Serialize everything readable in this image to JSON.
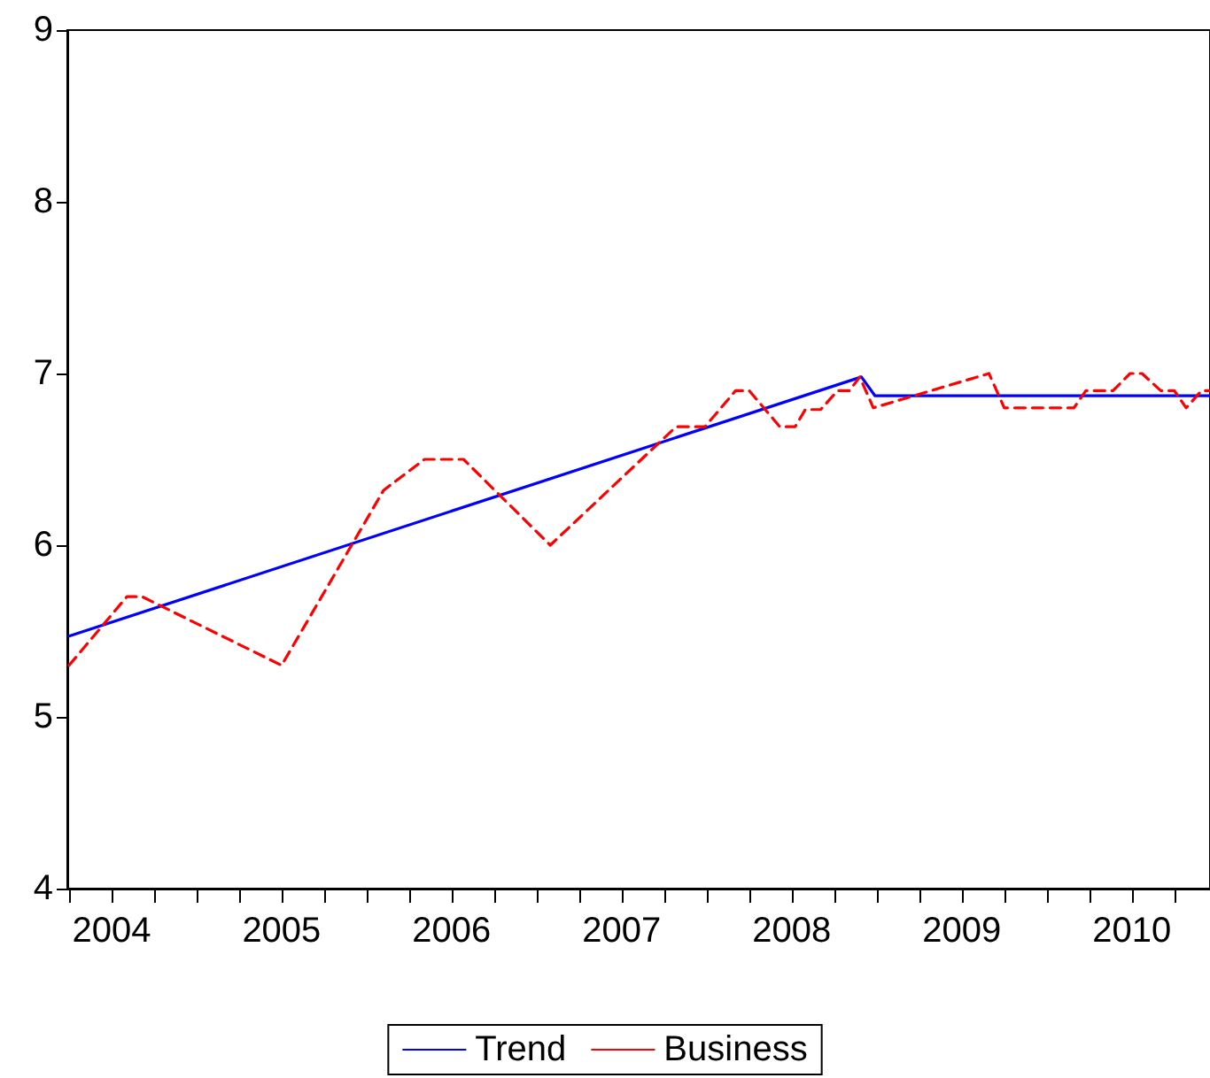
{
  "chart_data": {
    "type": "line",
    "xlim": [
      2004.24,
      2010.96
    ],
    "xticks": [
      {
        "value": 2004.25,
        "label": null
      },
      {
        "value": 2004.5,
        "label": "2004"
      },
      {
        "value": 2004.75,
        "label": null
      },
      {
        "value": 2005,
        "label": null
      },
      {
        "value": 2005.25,
        "label": null
      },
      {
        "value": 2005.5,
        "label": "2005"
      },
      {
        "value": 2005.75,
        "label": null
      },
      {
        "value": 2006,
        "label": null
      },
      {
        "value": 2006.25,
        "label": null
      },
      {
        "value": 2006.5,
        "label": "2006"
      },
      {
        "value": 2006.75,
        "label": null
      },
      {
        "value": 2007,
        "label": null
      },
      {
        "value": 2007.25,
        "label": null
      },
      {
        "value": 2007.5,
        "label": "2007"
      },
      {
        "value": 2007.75,
        "label": null
      },
      {
        "value": 2008,
        "label": null
      },
      {
        "value": 2008.25,
        "label": null
      },
      {
        "value": 2008.5,
        "label": "2008"
      },
      {
        "value": 2008.75,
        "label": null
      },
      {
        "value": 2009,
        "label": null
      },
      {
        "value": 2009.25,
        "label": null
      },
      {
        "value": 2009.5,
        "label": "2009"
      },
      {
        "value": 2009.75,
        "label": null
      },
      {
        "value": 2010,
        "label": null
      },
      {
        "value": 2010.25,
        "label": null
      },
      {
        "value": 2010.5,
        "label": "2010"
      },
      {
        "value": 2010.75,
        "label": null
      }
    ],
    "ylim": [
      4,
      9
    ],
    "yticks": [
      4,
      5,
      6,
      7,
      8,
      9
    ],
    "grid": false,
    "legend": "bottom",
    "marker": "none",
    "series": [
      {
        "name": "Trend",
        "color": "#0000ff",
        "line_style": "solid",
        "x": [
          2004.25,
          2008.91,
          2008.99,
          2010.96
        ],
        "values": [
          5.47,
          6.98,
          6.87,
          6.87
        ]
      },
      {
        "name": "Business",
        "color": "#ff0000",
        "line_style": "dashed",
        "x": [
          2004.25,
          2004.59,
          2004.68,
          2005.5,
          2006.1,
          2006.34,
          2006.57,
          2007.08,
          2007.82,
          2007.99,
          2008.17,
          2008.25,
          2008.43,
          2008.52,
          2008.58,
          2008.67,
          2008.77,
          2008.84,
          2008.9,
          2008.98,
          2009.66,
          2009.75,
          2010.16,
          2010.23,
          2010.39,
          2010.49,
          2010.56,
          2010.67,
          2010.75,
          2010.82,
          2010.91,
          2010.96
        ],
        "values": [
          5.3,
          5.7,
          5.7,
          5.3,
          6.32,
          6.5,
          6.5,
          6.0,
          6.69,
          6.69,
          6.9,
          6.9,
          6.69,
          6.69,
          6.79,
          6.79,
          6.9,
          6.9,
          6.98,
          6.8,
          7.0,
          6.8,
          6.8,
          6.9,
          6.9,
          7.0,
          7.0,
          6.9,
          6.9,
          6.8,
          6.9,
          6.9
        ]
      }
    ]
  }
}
